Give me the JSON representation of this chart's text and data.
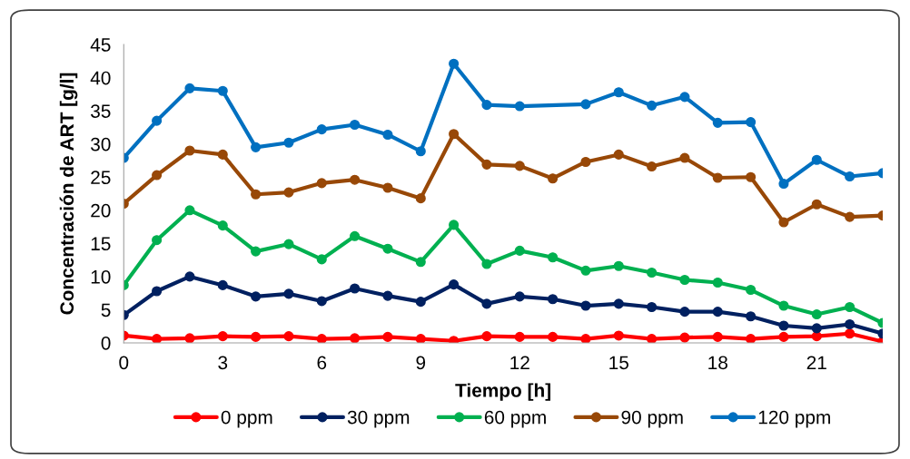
{
  "chart_data": {
    "type": "line",
    "xlabel": "Tiempo [h]",
    "ylabel": "Concentración de ART [g/l]",
    "xlim": [
      0,
      23
    ],
    "xticks": [
      0,
      3,
      6,
      9,
      12,
      15,
      18,
      21
    ],
    "ylim": [
      0,
      45
    ],
    "yticks": [
      0,
      5,
      10,
      15,
      20,
      25,
      30,
      35,
      40,
      45
    ],
    "grid": false,
    "legend": "bottom",
    "marker": "circle",
    "line_style": "solid",
    "series": [
      {
        "name": "0 ppm",
        "color": "#ff0000",
        "x": [
          0,
          1,
          2,
          3,
          4,
          5,
          6,
          7,
          8,
          9,
          10,
          11,
          12,
          13,
          14,
          15,
          16,
          17,
          18,
          19,
          20,
          21,
          22,
          23
        ],
        "values": [
          1.1,
          0.6,
          0.7,
          1.0,
          0.9,
          1.0,
          0.6,
          0.7,
          0.9,
          0.6,
          0.3,
          1.0,
          0.9,
          0.9,
          0.6,
          1.1,
          0.6,
          0.8,
          0.9,
          0.6,
          0.9,
          1.0,
          1.4,
          0.2
        ]
      },
      {
        "name": "30 ppm",
        "color": "#002060",
        "x": [
          0,
          1,
          2,
          3,
          4,
          5,
          6,
          7,
          8,
          9,
          10,
          11,
          12,
          13,
          14,
          15,
          16,
          17,
          18,
          19,
          20,
          21,
          22,
          23
        ],
        "values": [
          4.2,
          7.8,
          10.0,
          8.7,
          7.0,
          7.4,
          6.3,
          8.2,
          7.1,
          6.2,
          8.8,
          5.9,
          7.0,
          6.6,
          5.6,
          5.9,
          5.4,
          4.7,
          4.7,
          4.0,
          2.6,
          2.2,
          2.8,
          1.4
        ]
      },
      {
        "name": "60 ppm",
        "color": "#00b050",
        "x": [
          0,
          1,
          2,
          3,
          4,
          5,
          6,
          7,
          8,
          9,
          10,
          11,
          12,
          13,
          14,
          15,
          16,
          17,
          18,
          19,
          20,
          21,
          22,
          23
        ],
        "values": [
          8.7,
          15.5,
          20.0,
          17.7,
          13.8,
          14.9,
          12.6,
          16.1,
          14.2,
          12.2,
          17.8,
          11.9,
          13.9,
          12.9,
          10.9,
          11.6,
          10.6,
          9.5,
          9.1,
          8.0,
          5.6,
          4.3,
          5.4,
          3.0
        ]
      },
      {
        "name": "90 ppm",
        "color": "#984807",
        "x": [
          0,
          1,
          2,
          3,
          4,
          5,
          6,
          7,
          8,
          9,
          10,
          11,
          12,
          13,
          14,
          15,
          16,
          17,
          18,
          19,
          20,
          21,
          22,
          23
        ],
        "values": [
          21.0,
          25.3,
          29.0,
          28.4,
          22.4,
          22.7,
          24.1,
          24.6,
          23.4,
          21.8,
          31.5,
          26.9,
          26.7,
          24.8,
          27.3,
          28.4,
          26.6,
          27.9,
          24.9,
          25.0,
          18.2,
          20.9,
          19.0,
          19.2
        ]
      },
      {
        "name": "120 ppm",
        "color": "#0070c0",
        "x": [
          0,
          1,
          2,
          3,
          4,
          5,
          6,
          7,
          8,
          9,
          10,
          11,
          12,
          14,
          15,
          16,
          17,
          18,
          19,
          20,
          21,
          22,
          23
        ],
        "values": [
          27.9,
          33.5,
          38.4,
          38.0,
          29.5,
          30.2,
          32.2,
          32.9,
          31.4,
          28.9,
          42.1,
          35.9,
          35.7,
          36.0,
          37.8,
          35.8,
          37.1,
          33.2,
          33.3,
          24.0,
          27.6,
          25.1,
          25.6
        ]
      }
    ]
  }
}
